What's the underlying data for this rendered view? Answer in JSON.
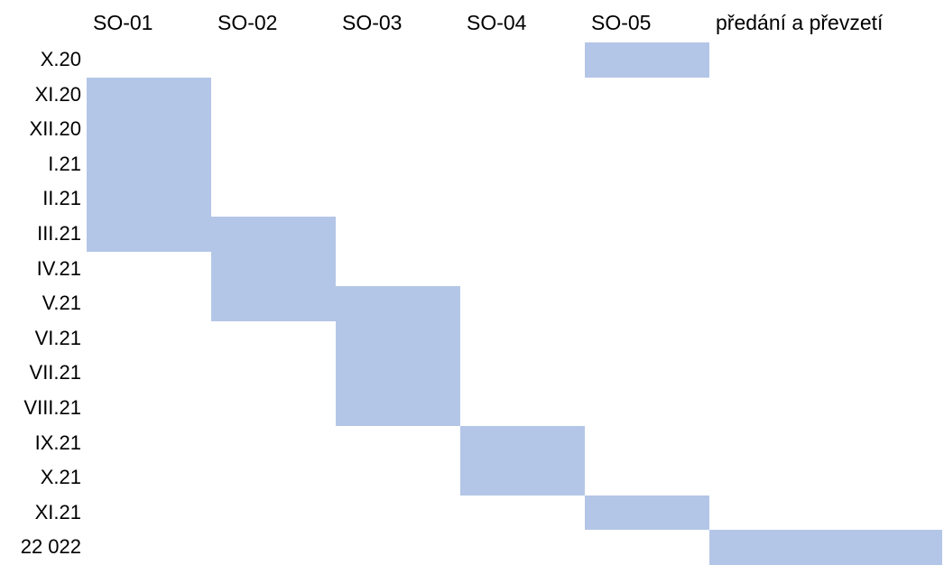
{
  "chart_data": {
    "type": "gantt",
    "bar_color": "#b4c6e7",
    "columns": [
      "SO-01",
      "SO-02",
      "SO-03",
      "SO-04",
      "SO-05",
      "předání a převzetí"
    ],
    "rows": [
      "X.20",
      "XI.20",
      "XII.20",
      "I.21",
      "II.21",
      "III.21",
      "IV.21",
      "V.21",
      "VI.21",
      "VII.21",
      "VIII.21",
      "IX.21",
      "X.21",
      "XI.21",
      "22 022"
    ],
    "tasks": [
      {
        "column": "SO-05",
        "start": "X.20",
        "end": "X.20"
      },
      {
        "column": "SO-01",
        "start": "XI.20",
        "end": "III.21"
      },
      {
        "column": "SO-02",
        "start": "III.21",
        "end": "V.21"
      },
      {
        "column": "SO-03",
        "start": "V.21",
        "end": "VIII.21"
      },
      {
        "column": "SO-04",
        "start": "IX.21",
        "end": "X.21"
      },
      {
        "column": "SO-05",
        "start": "XI.21",
        "end": "XI.21"
      },
      {
        "column": "předání a převzetí",
        "start": "22 022",
        "end": "22 022"
      }
    ]
  }
}
